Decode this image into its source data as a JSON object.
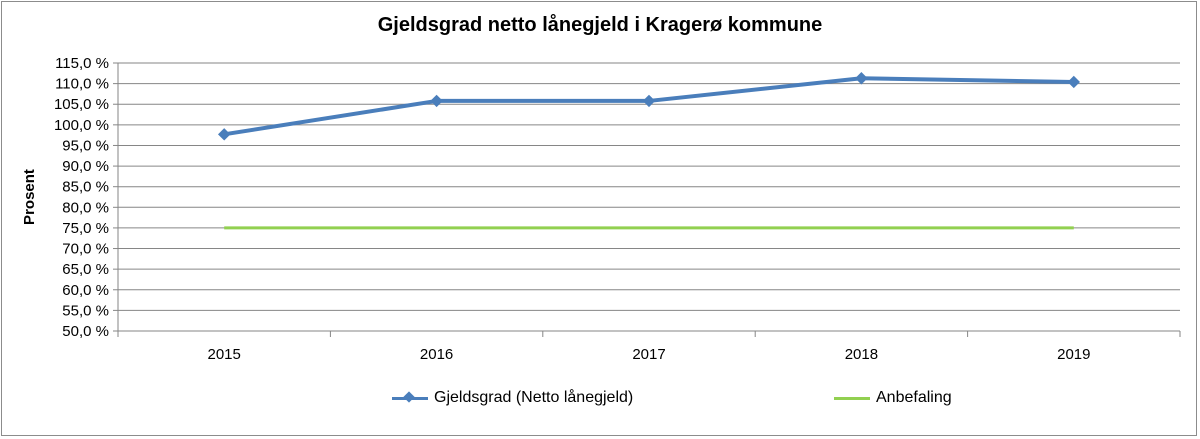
{
  "chart_data": {
    "type": "line",
    "title": "Gjeldsgrad netto lånegjeld i Kragerø kommune",
    "xlabel": "",
    "ylabel": "Prosent",
    "categories": [
      "2015",
      "2016",
      "2017",
      "2018",
      "2019"
    ],
    "ylim": [
      50,
      115
    ],
    "ytick_step": 5,
    "ytick_labels": [
      "50,0 %",
      "55,0 %",
      "60,0 %",
      "65,0 %",
      "70,0 %",
      "75,0 %",
      "80,0 %",
      "85,0 %",
      "90,0 %",
      "95,0 %",
      "100,0 %",
      "105,0 %",
      "110,0 %",
      "115,0 %"
    ],
    "grid": true,
    "legend_position": "bottom",
    "series": [
      {
        "name": "Gjeldsgrad (Netto lånegjeld)",
        "values": [
          97.7,
          105.8,
          105.8,
          111.3,
          110.4
        ],
        "color": "#4a7ebb",
        "marker": "diamond"
      },
      {
        "name": "Anbefaling",
        "values": [
          75,
          75,
          75,
          75,
          75
        ],
        "color": "#92d050",
        "marker": "none"
      }
    ]
  }
}
